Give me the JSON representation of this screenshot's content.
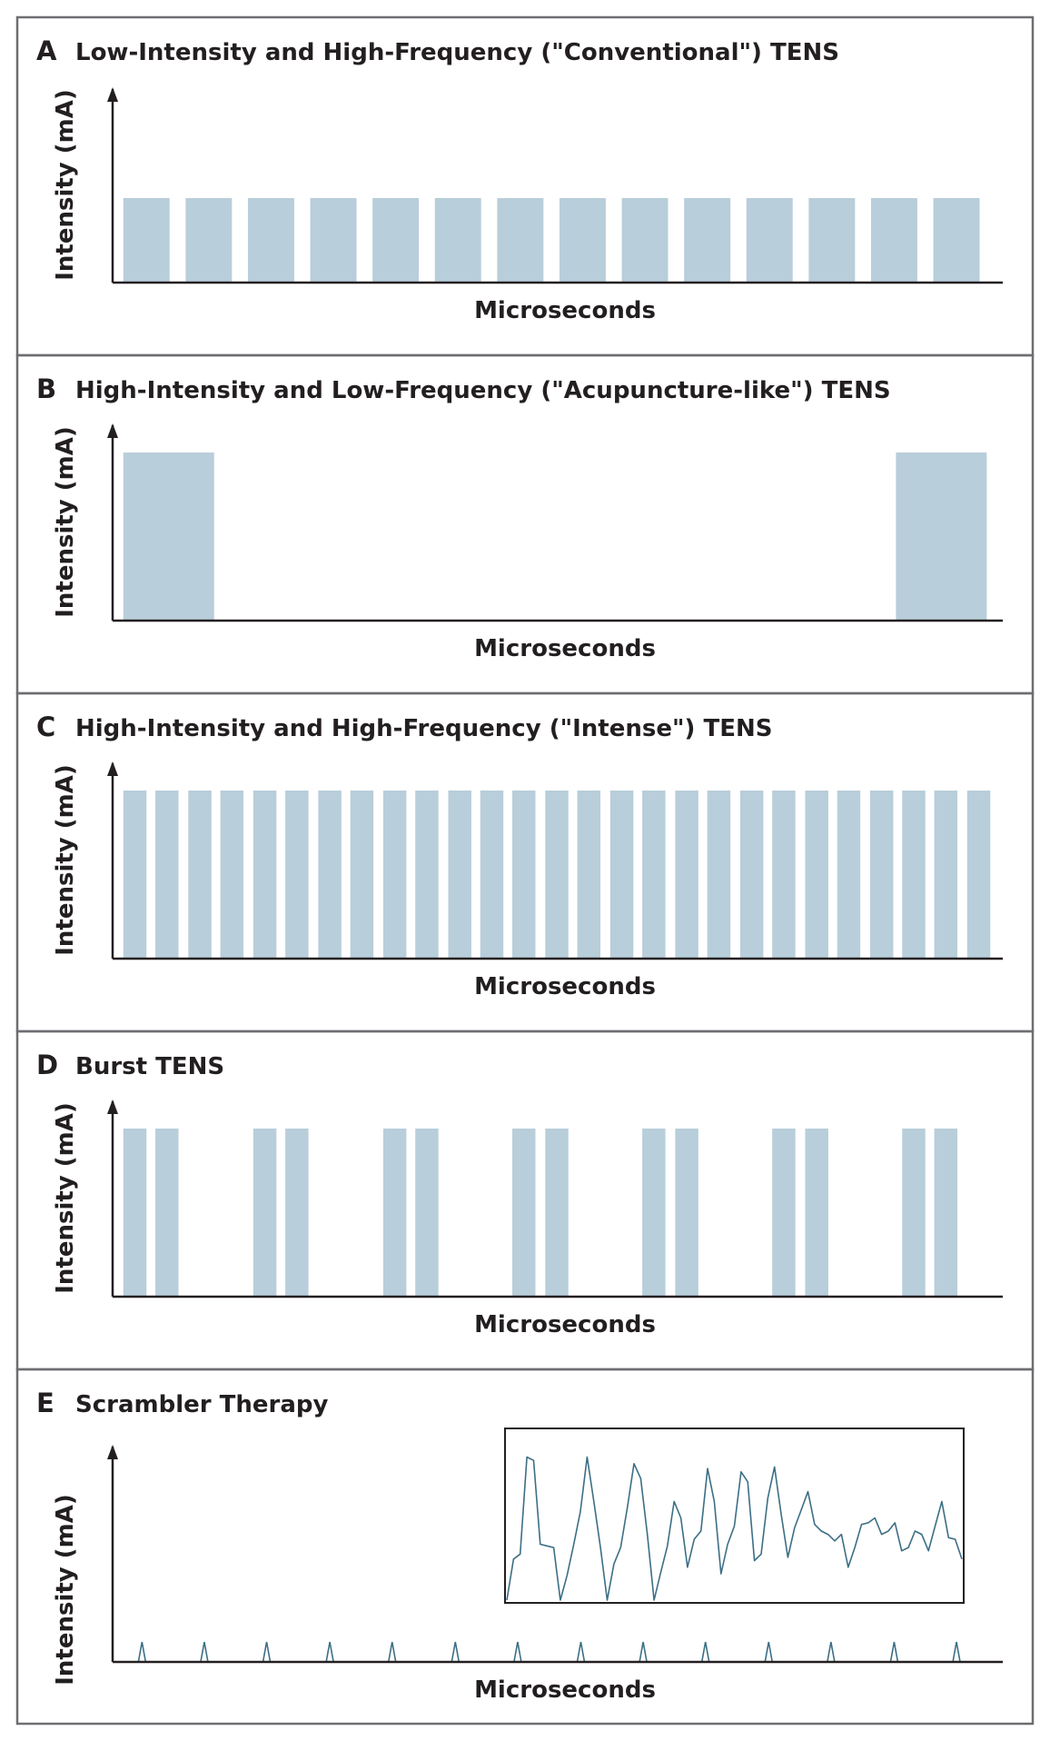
{
  "colors": {
    "pulse_fill": "#b8ceda",
    "waveform_stroke": "#3c6f85",
    "axis": "#231f20",
    "panel_border": "#6d6e71",
    "background": "#ffffff"
  },
  "chart_data": [
    {
      "type": "bar",
      "letter": "A",
      "title": "Low-Intensity and High-Frequency (\"Conventional\") TENS",
      "xlabel": "Microseconds",
      "ylabel": "Intensity (mA)",
      "xlim": [
        0,
        100
      ],
      "ylim": [
        0,
        100
      ],
      "pulse_intensity": 50,
      "pulses": [
        {
          "start": 1.2,
          "end": 6.4
        },
        {
          "start": 8.2,
          "end": 13.4
        },
        {
          "start": 15.2,
          "end": 20.4
        },
        {
          "start": 22.2,
          "end": 27.4
        },
        {
          "start": 29.2,
          "end": 34.4
        },
        {
          "start": 36.2,
          "end": 41.4
        },
        {
          "start": 43.2,
          "end": 48.4
        },
        {
          "start": 50.2,
          "end": 55.4
        },
        {
          "start": 57.2,
          "end": 62.4
        },
        {
          "start": 64.2,
          "end": 69.4
        },
        {
          "start": 71.2,
          "end": 76.4
        },
        {
          "start": 78.2,
          "end": 83.4
        },
        {
          "start": 85.2,
          "end": 90.4
        },
        {
          "start": 92.2,
          "end": 97.4
        }
      ]
    },
    {
      "type": "bar",
      "letter": "B",
      "title": "High-Intensity and Low-Frequency (\"Acupuncture-like\") TENS",
      "xlabel": "Microseconds",
      "ylabel": "Intensity (mA)",
      "xlim": [
        0,
        100
      ],
      "ylim": [
        0,
        100
      ],
      "pulse_intensity": 100,
      "pulses": [
        {
          "start": 1.2,
          "end": 11.4
        },
        {
          "start": 88.0,
          "end": 98.2
        }
      ]
    },
    {
      "type": "bar",
      "letter": "C",
      "title": "High-Intensity and High-Frequency (\"Intense\") TENS",
      "xlabel": "Microseconds",
      "ylabel": "Intensity (mA)",
      "xlim": [
        0,
        100
      ],
      "ylim": [
        0,
        100
      ],
      "pulse_intensity": 100,
      "pulses": [
        {
          "start": 1.2,
          "end": 3.8
        },
        {
          "start": 4.8,
          "end": 7.4
        },
        {
          "start": 8.5,
          "end": 11.1
        },
        {
          "start": 12.1,
          "end": 14.7
        },
        {
          "start": 15.8,
          "end": 18.4
        },
        {
          "start": 19.4,
          "end": 22.0
        },
        {
          "start": 23.1,
          "end": 25.7
        },
        {
          "start": 26.7,
          "end": 29.3
        },
        {
          "start": 30.4,
          "end": 33.0
        },
        {
          "start": 34.0,
          "end": 36.6
        },
        {
          "start": 37.7,
          "end": 40.3
        },
        {
          "start": 41.3,
          "end": 43.9
        },
        {
          "start": 44.9,
          "end": 47.5
        },
        {
          "start": 48.6,
          "end": 51.2
        },
        {
          "start": 52.2,
          "end": 54.8
        },
        {
          "start": 55.9,
          "end": 58.5
        },
        {
          "start": 59.5,
          "end": 62.1
        },
        {
          "start": 63.2,
          "end": 65.8
        },
        {
          "start": 66.8,
          "end": 69.4
        },
        {
          "start": 70.5,
          "end": 73.1
        },
        {
          "start": 74.1,
          "end": 76.7
        },
        {
          "start": 77.8,
          "end": 80.4
        },
        {
          "start": 81.4,
          "end": 84.0
        },
        {
          "start": 85.1,
          "end": 87.7
        },
        {
          "start": 88.7,
          "end": 91.3
        },
        {
          "start": 92.3,
          "end": 94.9
        },
        {
          "start": 96.0,
          "end": 98.6
        }
      ]
    },
    {
      "type": "bar",
      "letter": "D",
      "title": "Burst TENS",
      "xlabel": "Microseconds",
      "ylabel": "Intensity (mA)",
      "xlim": [
        0,
        100
      ],
      "ylim": [
        0,
        100
      ],
      "pulse_intensity": 100,
      "pulses": [
        {
          "start": 1.2,
          "end": 3.8
        },
        {
          "start": 4.8,
          "end": 7.4
        },
        {
          "start": 15.8,
          "end": 18.4
        },
        {
          "start": 19.4,
          "end": 22.0
        },
        {
          "start": 30.4,
          "end": 33.0
        },
        {
          "start": 34.0,
          "end": 36.6
        },
        {
          "start": 44.9,
          "end": 47.5
        },
        {
          "start": 48.6,
          "end": 51.2
        },
        {
          "start": 59.5,
          "end": 62.1
        },
        {
          "start": 63.2,
          "end": 65.8
        },
        {
          "start": 74.1,
          "end": 76.7
        },
        {
          "start": 77.8,
          "end": 80.4
        },
        {
          "start": 88.7,
          "end": 91.3
        },
        {
          "start": 92.3,
          "end": 94.9
        }
      ]
    },
    {
      "type": "line",
      "letter": "E",
      "title": "Scrambler Therapy",
      "xlabel": "Microseconds",
      "ylabel": "Intensity (mA)",
      "xlim": [
        0,
        100
      ],
      "ylim": [
        0,
        100
      ],
      "spike_height": 10,
      "spike_positions": [
        3.3,
        10.3,
        17.3,
        24.4,
        31.4,
        38.5,
        45.5,
        52.6,
        59.6,
        66.6,
        73.7,
        80.7,
        87.8,
        94.8
      ],
      "inset": {
        "description": "zoomed waveform",
        "ylim": [
          0,
          100
        ],
        "values": [
          0,
          25,
          28,
          87,
          85,
          34,
          33,
          32,
          0,
          15,
          34,
          54,
          87,
          60,
          32,
          0,
          22,
          32,
          56,
          83,
          74,
          40,
          0,
          17,
          33,
          60,
          50,
          20,
          37,
          42,
          80,
          60,
          16,
          34,
          45,
          78,
          72,
          24,
          28,
          62,
          81,
          52,
          26,
          44,
          55,
          66,
          46,
          42,
          40,
          36,
          40,
          20,
          32,
          46,
          47,
          50,
          40,
          42,
          47,
          30,
          32,
          42,
          40,
          30,
          45,
          60,
          38,
          37,
          25
        ]
      }
    }
  ]
}
